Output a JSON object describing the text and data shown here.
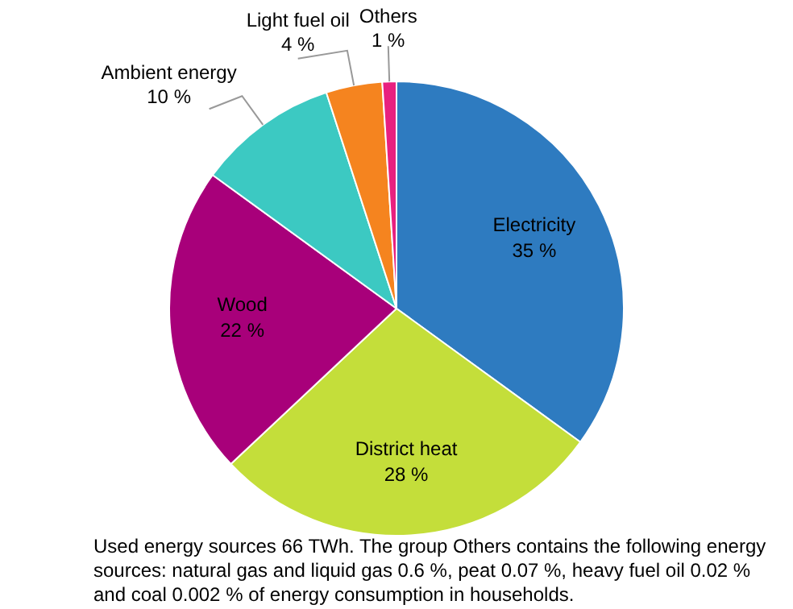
{
  "chart_data": {
    "type": "pie",
    "categories": [
      "Electricity",
      "District heat",
      "Wood",
      "Ambient energy",
      "Light fuel oil",
      "Others"
    ],
    "values": [
      35,
      28,
      22,
      10,
      4,
      1
    ],
    "colors": [
      "#2e7bc0",
      "#c4de3a",
      "#a8007a",
      "#3cc9c2",
      "#f5841f",
      "#e8207f"
    ],
    "value_labels": [
      "35 %",
      "28 %",
      "22 %",
      "10 %",
      "4 %",
      "1 %"
    ],
    "legend": false,
    "annotations": [
      "Used energy sources 66 TWh. The group Others contains the following energy sources: natural gas and liquid gas 0.6 %, peat 0.07 %, heavy fuel oil 0.02 % and coal 0.002 % of energy consumption in households."
    ]
  }
}
